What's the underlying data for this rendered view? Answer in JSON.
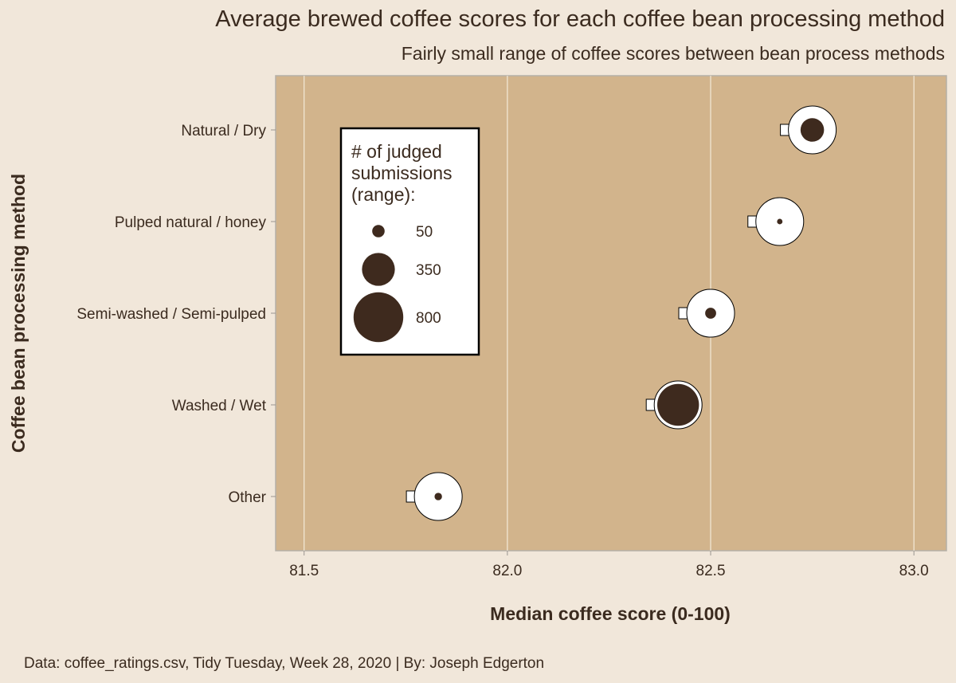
{
  "chart_data": {
    "type": "scatter",
    "title": "Average brewed coffee scores for each coffee bean processing method",
    "subtitle": "Fairly small range of coffee scores between bean process methods",
    "xlabel": "Median coffee score (0-100)",
    "ylabel": "Coffee bean processing method",
    "xlim": [
      81.43,
      83.08
    ],
    "xticks": [
      81.5,
      82.0,
      82.5,
      83.0
    ],
    "xtick_labels": [
      "81.5",
      "82.0",
      "82.5",
      "83.0"
    ],
    "categories": [
      "Natural / Dry",
      "Pulped natural / honey",
      "Semi-washed / Semi-pulped",
      "Washed / Wet",
      "Other"
    ],
    "points": [
      {
        "category": "Natural / Dry",
        "x": 82.75,
        "n": 258
      },
      {
        "category": "Pulped natural / honey",
        "x": 82.67,
        "n": 14
      },
      {
        "category": "Semi-washed / Semi-pulped",
        "x": 82.5,
        "n": 56
      },
      {
        "category": "Washed / Wet",
        "x": 82.42,
        "n": 812
      },
      {
        "category": "Other",
        "x": 81.83,
        "n": 26
      }
    ],
    "legend": {
      "title_lines": [
        "# of judged",
        "submissions",
        "(range):"
      ],
      "entries": [
        {
          "label": "50",
          "n": 50
        },
        {
          "label": "350",
          "n": 350
        },
        {
          "label": "800",
          "n": 800
        }
      ],
      "position": "top-left"
    },
    "grid": true,
    "colors": {
      "panel": "#d2b48c",
      "background": "#f1e7da",
      "cup": "#ffffff",
      "coffee": "#3e2a1e",
      "grid": "#f3ead9",
      "text": "#3b2b1f"
    }
  },
  "caption": "Data: coffee_ratings.csv, Tidy Tuesday, Week 28, 2020 | By: Joseph Edgerton"
}
